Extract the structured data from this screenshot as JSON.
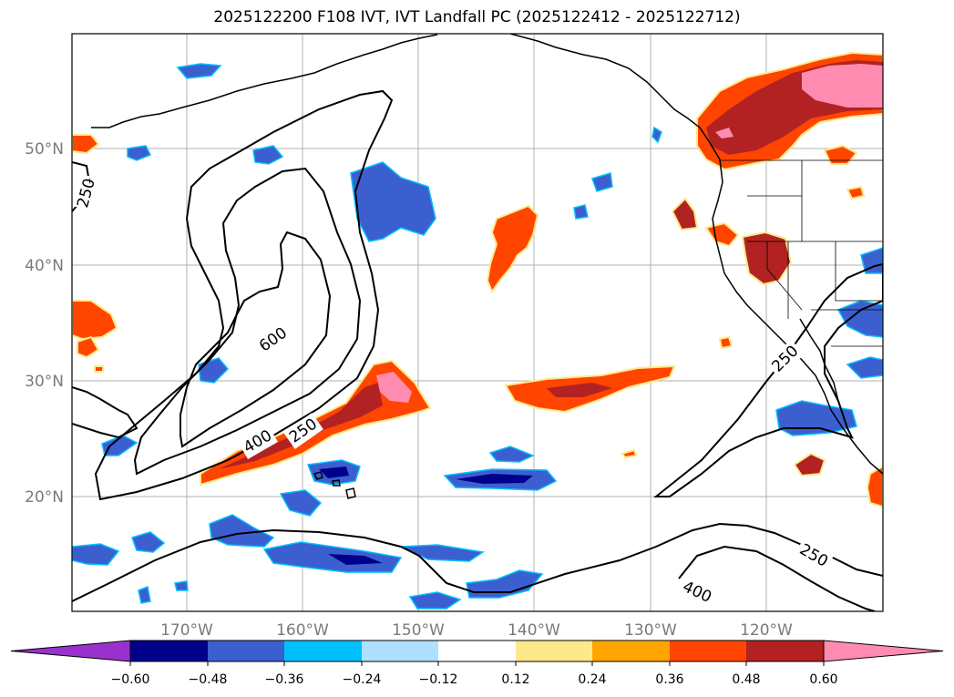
{
  "title": "2025122200 F108 IVT, IVT Landfall PC (2025122412 - 2025122712)",
  "map": {
    "lat_labels": [
      "50°N",
      "40°N",
      "30°N",
      "20°N"
    ],
    "lon_labels": [
      "170°W",
      "160°W",
      "150°W",
      "140°W",
      "130°W",
      "120°W"
    ],
    "contour_labels": [
      "250",
      "600",
      "400",
      "250",
      "250",
      "250",
      "400"
    ],
    "colors": {
      "pink": "#ff8cb0",
      "dark_red": "#b22222",
      "red_orange": "#ff4500",
      "orange": "#ffa500",
      "yellow": "#ffe88a",
      "light_blue": "#b0e0ff",
      "cyan": "#00bfff",
      "royal_blue": "#3c5fd0",
      "navy": "#00008b",
      "purple": "#9932cc"
    }
  },
  "colorbar": {
    "ticks": [
      "−0.60",
      "−0.48",
      "−0.36",
      "−0.24",
      "−0.12",
      "0.12",
      "0.24",
      "0.36",
      "0.48",
      "0.60"
    ],
    "bins": [
      {
        "color": "#9932cc"
      },
      {
        "color": "#00008b"
      },
      {
        "color": "#3c5fd0"
      },
      {
        "color": "#00bfff"
      },
      {
        "color": "#b0e0ff"
      },
      {
        "color": "#ffffff"
      },
      {
        "color": "#ffe88a"
      },
      {
        "color": "#ffa500"
      },
      {
        "color": "#ff4500"
      },
      {
        "color": "#b22222"
      },
      {
        "color": "#ff8cb0"
      }
    ]
  }
}
